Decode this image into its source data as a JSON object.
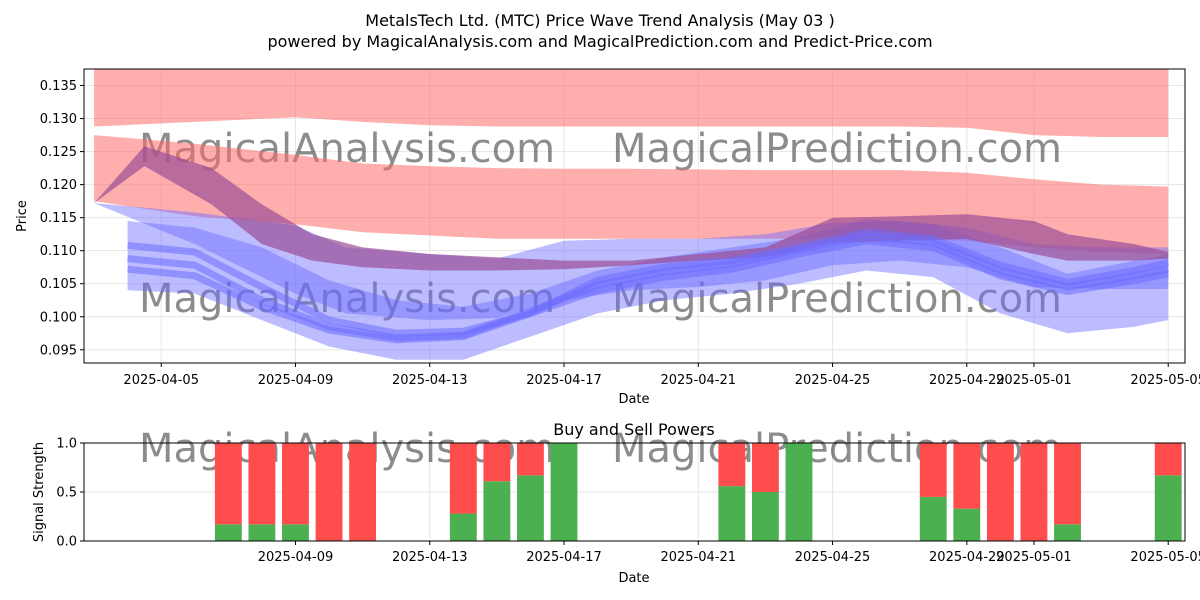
{
  "figure": {
    "title": "MetalsTech Ltd. (MTC) Price Wave Trend Analysis (May 03 )",
    "subtitle": "powered by MagicalAnalysis.com and MagicalPrediction.com and Predict-Price.com",
    "watermarks": [
      "MagicalAnalysis.com",
      "MagicalPrediction.com"
    ]
  },
  "colors": {
    "red_band": "#ff6b6b",
    "purple_band": "#9b4f96",
    "blue_band": "#6b6bff",
    "buy": "#4caf50",
    "sell": "#ff4c4c",
    "grid": "#e6e6e6",
    "watermark": "#d9d9d9"
  },
  "chart_data": [
    {
      "type": "area",
      "title": "",
      "xlabel": "Date",
      "ylabel": "Price",
      "xlim": [
        -1.3,
        31.5
      ],
      "ylim": [
        0.093,
        0.1375
      ],
      "grid": true,
      "x_ticks": [
        {
          "day": 1,
          "label": "2025-04-05"
        },
        {
          "day": 5,
          "label": "2025-04-09"
        },
        {
          "day": 9,
          "label": "2025-04-13"
        },
        {
          "day": 13,
          "label": "2025-04-17"
        },
        {
          "day": 17,
          "label": "2025-04-21"
        },
        {
          "day": 21,
          "label": "2025-04-25"
        },
        {
          "day": 25,
          "label": "2025-04-29"
        },
        {
          "day": 27,
          "label": "2025-05-01"
        },
        {
          "day": 31,
          "label": "2025-05-05"
        }
      ],
      "y_ticks": [
        {
          "value": 0.095,
          "label": "0.095"
        },
        {
          "value": 0.1,
          "label": "0.100"
        },
        {
          "value": 0.105,
          "label": "0.105"
        },
        {
          "value": 0.11,
          "label": "0.110"
        },
        {
          "value": 0.115,
          "label": "0.115"
        },
        {
          "value": 0.12,
          "label": "0.120"
        },
        {
          "value": 0.125,
          "label": "0.125"
        },
        {
          "value": 0.13,
          "label": "0.130"
        },
        {
          "value": 0.135,
          "label": "0.135"
        }
      ],
      "red_upper_band": {
        "x": [
          -1,
          2,
          5,
          7,
          9,
          11,
          13,
          15,
          17,
          19,
          21,
          23,
          25,
          27,
          29,
          31
        ],
        "upper": [
          0.1375,
          0.1375,
          0.1375,
          0.1375,
          0.1375,
          0.1375,
          0.1375,
          0.1375,
          0.1375,
          0.1375,
          0.1375,
          0.1375,
          0.1375,
          0.1375,
          0.1375,
          0.1375
        ],
        "lower": [
          0.1288,
          0.1295,
          0.1302,
          0.1295,
          0.129,
          0.1288,
          0.1288,
          0.1288,
          0.1288,
          0.1288,
          0.1288,
          0.1288,
          0.1286,
          0.1275,
          0.1272,
          0.1272
        ]
      },
      "red_lower_band": {
        "x": [
          -1,
          2,
          5,
          7,
          9,
          11,
          13,
          15,
          17,
          19,
          21,
          23,
          25,
          27,
          29,
          31
        ],
        "upper": [
          0.1275,
          0.1262,
          0.1245,
          0.1232,
          0.1228,
          0.1225,
          0.1224,
          0.1224,
          0.1223,
          0.1222,
          0.1222,
          0.1222,
          0.1218,
          0.1208,
          0.12,
          0.1197
        ],
        "lower": [
          0.1175,
          0.1152,
          0.114,
          0.1128,
          0.1123,
          0.1118,
          0.1118,
          0.1118,
          0.1118,
          0.1118,
          0.1118,
          0.1118,
          0.1115,
          0.1105,
          0.1098,
          0.1095
        ]
      },
      "purple_band": {
        "x": [
          -1,
          0.5,
          2.5,
          4,
          5.5,
          7,
          9,
          11,
          13,
          15,
          17,
          19,
          21,
          23,
          25,
          27,
          28,
          30,
          31
        ],
        "upper": [
          0.1172,
          0.1258,
          0.1225,
          0.117,
          0.1125,
          0.1105,
          0.1095,
          0.109,
          0.1085,
          0.1085,
          0.1095,
          0.1105,
          0.115,
          0.1152,
          0.1155,
          0.1145,
          0.1125,
          0.111,
          0.1098
        ],
        "lower": [
          0.1172,
          0.1228,
          0.117,
          0.111,
          0.1085,
          0.1075,
          0.107,
          0.107,
          0.1072,
          0.1078,
          0.1085,
          0.109,
          0.1112,
          0.1115,
          0.1118,
          0.1095,
          0.1085,
          0.1085,
          0.1088
        ]
      },
      "blue_bands": [
        {
          "x": [
            -1,
            2,
            5,
            6.5,
            9,
            11,
            13,
            15,
            17,
            19,
            21,
            23,
            25,
            27,
            29,
            31
          ],
          "upper": [
            0.1172,
            0.1158,
            0.1138,
            0.1105,
            0.1095,
            0.1088,
            0.1115,
            0.1118,
            0.1118,
            0.1125,
            0.1142,
            0.1145,
            0.1135,
            0.111,
            0.1105,
            0.1105
          ],
          "lower": [
            0.1172,
            0.111,
            0.1035,
            0.1005,
            0.0995,
            0.0998,
            0.1025,
            0.104,
            0.1045,
            0.1055,
            0.1078,
            0.1085,
            0.1075,
            0.1045,
            0.1042,
            0.1042
          ]
        },
        {
          "x": [
            0,
            2,
            4,
            6,
            8,
            10,
            12,
            14,
            16,
            18,
            20,
            22,
            24,
            26,
            28,
            30,
            31
          ],
          "upper": [
            0.1145,
            0.1135,
            0.1105,
            0.1055,
            0.1025,
            0.1015,
            0.1035,
            0.107,
            0.109,
            0.1105,
            0.112,
            0.1148,
            0.114,
            0.1105,
            0.1065,
            0.1085,
            0.1095
          ],
          "lower": [
            0.104,
            0.1035,
            0.0995,
            0.0955,
            0.0935,
            0.0935,
            0.097,
            0.1005,
            0.1025,
            0.1035,
            0.105,
            0.107,
            0.106,
            0.1005,
            0.0975,
            0.0985,
            0.0995
          ]
        }
      ],
      "blue_lines": [
        {
          "x": [
            0,
            2,
            4,
            6,
            8,
            10,
            12,
            14,
            16,
            18,
            20,
            22,
            24,
            26,
            28,
            30,
            31
          ],
          "y": [
            0.1108,
            0.1098,
            0.1045,
            0.0995,
            0.0975,
            0.0978,
            0.1005,
            0.1055,
            0.1075,
            0.1085,
            0.1105,
            0.1128,
            0.1118,
            0.1078,
            0.1052,
            0.107,
            0.1082
          ]
        },
        {
          "x": [
            0,
            2,
            4,
            6,
            8,
            10,
            12,
            14,
            16,
            18,
            20,
            22,
            24,
            26,
            28,
            30,
            31
          ],
          "y": [
            0.1072,
            0.1062,
            0.1015,
            0.098,
            0.0965,
            0.097,
            0.1005,
            0.104,
            0.106,
            0.1072,
            0.1095,
            0.1115,
            0.1105,
            0.1062,
            0.1038,
            0.1055,
            0.1065
          ]
        },
        {
          "x": [
            0,
            2,
            4,
            6,
            8,
            10,
            12,
            14,
            16,
            18,
            20,
            22,
            24,
            26,
            28,
            30,
            31
          ],
          "y": [
            0.1088,
            0.1078,
            0.1025,
            0.0985,
            0.0968,
            0.0972,
            0.1008,
            0.1048,
            0.1068,
            0.108,
            0.1102,
            0.1122,
            0.1112,
            0.107,
            0.1045,
            0.1062,
            0.1072
          ]
        }
      ]
    },
    {
      "type": "bar",
      "title": "Buy and Sell Powers",
      "xlabel": "Date",
      "ylabel": "Signal Strength",
      "xlim": [
        -1.3,
        31.5
      ],
      "ylim": [
        0,
        1
      ],
      "grid": true,
      "x_ticks": [
        {
          "day": 5,
          "label": "2025-04-09"
        },
        {
          "day": 9,
          "label": "2025-04-13"
        },
        {
          "day": 13,
          "label": "2025-04-17"
        },
        {
          "day": 17,
          "label": "2025-04-21"
        },
        {
          "day": 21,
          "label": "2025-04-25"
        },
        {
          "day": 25,
          "label": "2025-04-29"
        },
        {
          "day": 27,
          "label": "2025-05-01"
        },
        {
          "day": 31,
          "label": "2025-05-05"
        }
      ],
      "y_ticks": [
        {
          "value": 0,
          "label": "0.0"
        },
        {
          "value": 0.5,
          "label": "0.5"
        },
        {
          "value": 1,
          "label": "1.0"
        }
      ],
      "series": [
        {
          "name": "Buy",
          "days": [
            3,
            4,
            5,
            6,
            7,
            10,
            11,
            12,
            13,
            18,
            19,
            20,
            24,
            25,
            26,
            27,
            28,
            31
          ],
          "values": [
            0.17,
            0.17,
            0.17,
            0,
            0,
            0.28,
            0.61,
            0.67,
            1.0,
            0.56,
            0.5,
            1.0,
            0.45,
            0.33,
            0,
            0,
            0.17,
            0.67
          ]
        },
        {
          "name": "Sell",
          "days": [
            3,
            4,
            5,
            6,
            7,
            10,
            11,
            12,
            13,
            18,
            19,
            20,
            24,
            25,
            26,
            27,
            28,
            31
          ],
          "values": [
            0.83,
            0.83,
            0.83,
            1.0,
            1.0,
            0.72,
            0.39,
            0.33,
            0,
            0.44,
            0.5,
            0,
            0.55,
            0.67,
            1.0,
            1.0,
            0.83,
            0.33
          ]
        }
      ]
    }
  ]
}
